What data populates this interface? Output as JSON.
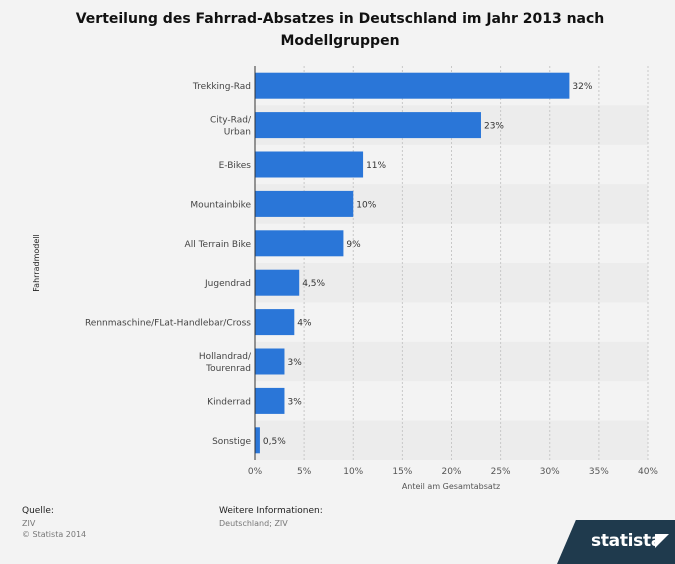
{
  "title": "Verteilung des Fahrrad-Absatzes in Deutschland im Jahr 2013 nach Modellgruppen",
  "footer": {
    "source_label": "Quelle:",
    "source_line1": "ZIV",
    "source_line2": "© Statista 2014",
    "info_label": "Weitere Informationen:",
    "info_text": "Deutschland; ZIV"
  },
  "logo": {
    "text": "statista"
  },
  "colors": {
    "bar": "#2a76d8",
    "band": "#ececec",
    "background": "#f3f3f3",
    "logo_bg": "#1f3a4d"
  },
  "chart_data": {
    "type": "bar",
    "orientation": "horizontal",
    "title": "Verteilung des Fahrrad-Absatzes in Deutschland im Jahr 2013 nach Modellgruppen",
    "xlabel": "Anteil am Gesamtabsatz",
    "ylabel": "Fahrradmodell",
    "xlim": [
      0,
      40
    ],
    "xticks": [
      0,
      5,
      10,
      15,
      20,
      25,
      30,
      35,
      40
    ],
    "xtick_labels": [
      "0%",
      "5%",
      "10%",
      "15%",
      "20%",
      "25%",
      "30%",
      "35%",
      "40%"
    ],
    "grid": "vertical dashed",
    "categories": [
      "Trekking-Rad",
      "City-Rad/\nUrban",
      "E-Bikes",
      "Mountainbike",
      "All Terrain Bike",
      "Jugendrad",
      "Rennmaschine/FLat-Handlebar/Cross",
      "Hollandrad/\nTourenrad",
      "Kinderrad",
      "Sonstige"
    ],
    "values": [
      32,
      23,
      11,
      10,
      9,
      4.5,
      4,
      3,
      3,
      0.5
    ],
    "value_labels": [
      "32%",
      "23%",
      "11%",
      "10%",
      "9%",
      "4,5%",
      "4%",
      "3%",
      "3%",
      "0,5%"
    ]
  }
}
